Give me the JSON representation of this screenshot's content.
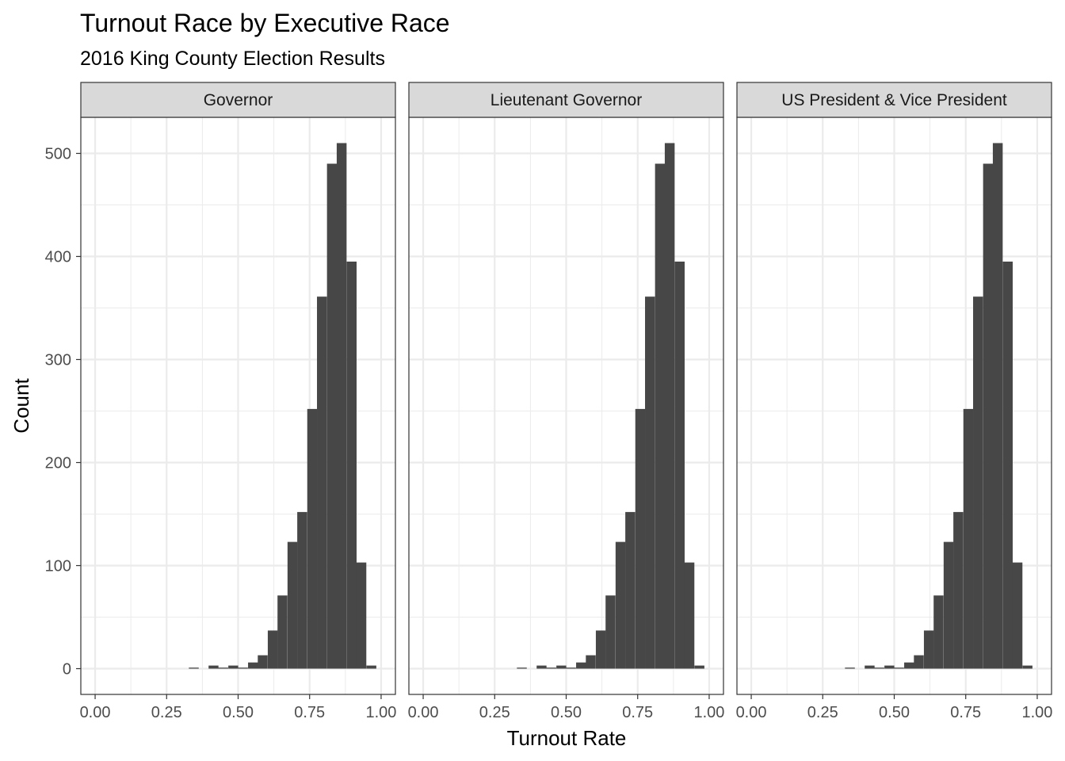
{
  "chart_data": {
    "type": "bar",
    "title": "Turnout Race by Executive Race",
    "subtitle": "2016 King County Election Results",
    "xlabel": "Turnout Rate",
    "ylabel": "Count",
    "xlim": [
      -0.05,
      1.05
    ],
    "ylim": [
      -25,
      535
    ],
    "x_ticks": [
      "0.00",
      "0.25",
      "0.50",
      "0.75",
      "1.00"
    ],
    "x_tick_values": [
      0,
      0.25,
      0.5,
      0.75,
      1.0
    ],
    "y_ticks": [
      "0",
      "100",
      "200",
      "300",
      "400",
      "500"
    ],
    "y_tick_values": [
      0,
      100,
      200,
      300,
      400,
      500
    ],
    "grid": true,
    "bin_width": 0.0345,
    "bar_color": "#474747",
    "panel_border_color": "#333333",
    "strip_fill": "#d9d9d9",
    "grid_color": "#ebebeb",
    "bin_centers": [
      0.345,
      0.379,
      0.414,
      0.448,
      0.483,
      0.517,
      0.552,
      0.586,
      0.621,
      0.655,
      0.69,
      0.724,
      0.759,
      0.793,
      0.828,
      0.862,
      0.897,
      0.931,
      0.966
    ],
    "panels": [
      {
        "label": "Governor",
        "values": [
          1,
          0,
          3,
          1,
          3,
          1,
          6,
          13,
          37,
          71,
          123,
          152,
          252,
          361,
          490,
          510,
          395,
          103,
          3
        ]
      },
      {
        "label": "Lieutenant Governor",
        "values": [
          1,
          0,
          3,
          1,
          3,
          1,
          6,
          13,
          37,
          71,
          123,
          152,
          252,
          361,
          490,
          510,
          395,
          103,
          3
        ]
      },
      {
        "label": "US President & Vice President",
        "values": [
          1,
          0,
          3,
          1,
          3,
          1,
          6,
          13,
          37,
          71,
          123,
          152,
          252,
          361,
          490,
          510,
          395,
          103,
          3
        ]
      }
    ]
  }
}
